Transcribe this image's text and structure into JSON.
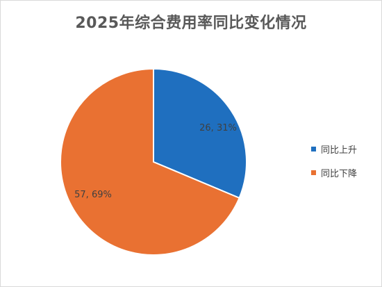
{
  "chart_data": {
    "type": "pie",
    "title": "2025年综合费用率同比变化情况",
    "categories": [
      "同比上升",
      "同比下降"
    ],
    "values": [
      26,
      57
    ],
    "percents": [
      "31%",
      "69%"
    ],
    "data_labels": [
      "26, 31%",
      "57, 69%"
    ],
    "colors": [
      "#1f6fbf",
      "#e97132"
    ],
    "legend_position": "right",
    "start_angle_deg": 0,
    "direction": "clockwise"
  }
}
